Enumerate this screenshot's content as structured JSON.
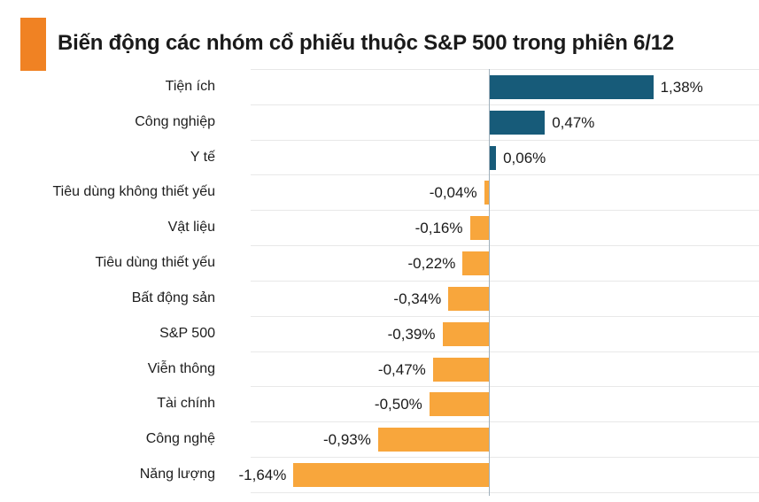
{
  "header": {
    "title": "Biến động các nhóm cổ phiếu thuộc S&P 500 trong phiên 6/12",
    "accent_color": "#F08223"
  },
  "chart_data": {
    "type": "bar",
    "orientation": "horizontal",
    "title": "Biến động các nhóm cổ phiếu thuộc S&P 500 trong phiên 6/12",
    "categories": [
      "Tiện ích",
      "Công nghiệp",
      "Y tế",
      "Tiêu dùng không thiết yếu",
      "Vật liệu",
      "Tiêu dùng thiết yếu",
      "Bất động sản",
      "S&P 500",
      "Viễn thông",
      "Tài chính",
      "Công nghệ",
      "Năng lượng"
    ],
    "values": [
      1.38,
      0.47,
      0.06,
      -0.04,
      -0.16,
      -0.22,
      -0.34,
      -0.39,
      -0.47,
      -0.5,
      -0.93,
      -1.64
    ],
    "value_labels": [
      "1,38%",
      "0,47%",
      "0,06%",
      "-0,04%",
      "-0,16%",
      "-0,22%",
      "-0,34%",
      "-0,39%",
      "-0,47%",
      "-0,50%",
      "-0,93%",
      "-1,64%"
    ],
    "unit": "%",
    "positive_color": "#175B79",
    "negative_color": "#F8A63C",
    "gridline_color": "#e8e8e8",
    "axis_color": "#9fb0bc",
    "xlim": [
      -2.0,
      2.27
    ],
    "grid": true,
    "legend": "none"
  }
}
